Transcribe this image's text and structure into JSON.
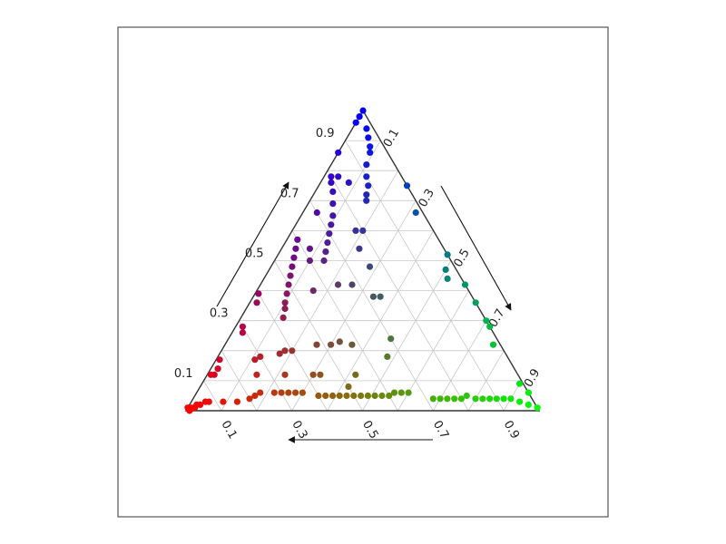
{
  "chart_data": {
    "type": "scatter",
    "subtype": "ternary",
    "title": "",
    "axes": {
      "a": {
        "label": "",
        "ticks": [
          "0.1",
          "0.3",
          "0.5",
          "0.7",
          "0.9"
        ],
        "range": [
          0,
          1
        ]
      },
      "b": {
        "label": "",
        "ticks": [
          "0.1",
          "0.3",
          "0.5",
          "0.7",
          "0.9"
        ],
        "range": [
          0,
          1
        ]
      },
      "c": {
        "label": "",
        "ticks": [
          "0.9",
          "0.7",
          "0.5",
          "0.3",
          "0.1"
        ],
        "range": [
          0,
          1
        ]
      }
    },
    "grid": true,
    "color_mapping": "rgb = (a, b, c)",
    "points": [
      [
        0.0,
        0.0,
        1.0
      ],
      [
        0.02,
        0.0,
        0.98
      ],
      [
        0.04,
        0.0,
        0.96
      ],
      [
        0.02,
        0.04,
        0.94
      ],
      [
        0.03,
        0.06,
        0.91
      ],
      [
        0.04,
        0.08,
        0.88
      ],
      [
        0.05,
        0.09,
        0.86
      ],
      [
        0.08,
        0.1,
        0.82
      ],
      [
        0.1,
        0.12,
        0.78
      ],
      [
        0.11,
        0.14,
        0.75
      ],
      [
        0.13,
        0.15,
        0.72
      ],
      [
        0.14,
        0.16,
        0.7
      ],
      [
        0.2,
        0.02,
        0.78
      ],
      [
        0.21,
        0.03,
        0.76
      ],
      [
        0.22,
        0.05,
        0.73
      ],
      [
        0.24,
        0.07,
        0.69
      ],
      [
        0.26,
        0.09,
        0.65
      ],
      [
        0.28,
        0.1,
        0.62
      ],
      [
        0.3,
        0.11,
        0.59
      ],
      [
        0.32,
        0.12,
        0.56
      ],
      [
        0.34,
        0.13,
        0.53
      ],
      [
        0.36,
        0.14,
        0.5
      ],
      [
        0.4,
        0.03,
        0.57
      ],
      [
        0.42,
        0.04,
        0.54
      ],
      [
        0.44,
        0.05,
        0.51
      ],
      [
        0.46,
        0.06,
        0.48
      ],
      [
        0.48,
        0.07,
        0.45
      ],
      [
        0.5,
        0.08,
        0.42
      ],
      [
        0.52,
        0.09,
        0.39
      ],
      [
        0.54,
        0.1,
        0.36
      ],
      [
        0.55,
        0.11,
        0.34
      ],
      [
        0.57,
        0.12,
        0.31
      ],
      [
        0.6,
        0.01,
        0.39
      ],
      [
        0.62,
        0.02,
        0.36
      ],
      [
        0.7,
        0.02,
        0.28
      ],
      [
        0.71,
        0.03,
        0.26
      ],
      [
        0.86,
        0.02,
        0.12
      ],
      [
        0.87,
        0.01,
        0.12
      ],
      [
        0.98,
        0.01,
        0.01
      ],
      [
        0.99,
        0.0,
        0.01
      ],
      [
        0.97,
        0.02,
        0.01
      ],
      [
        0.95,
        0.03,
        0.02
      ],
      [
        0.93,
        0.04,
        0.03
      ],
      [
        0.0,
        0.25,
        0.75
      ],
      [
        0.02,
        0.32,
        0.66
      ],
      [
        0.0,
        0.48,
        0.52
      ],
      [
        0.03,
        0.5,
        0.47
      ],
      [
        0.04,
        0.52,
        0.44
      ],
      [
        0.0,
        0.58,
        0.42
      ],
      [
        0.0,
        0.64,
        0.36
      ],
      [
        0.0,
        0.7,
        0.3
      ],
      [
        0.0,
        0.72,
        0.28
      ],
      [
        0.02,
        0.76,
        0.22
      ],
      [
        0.01,
        0.9,
        0.09
      ],
      [
        0.0,
        0.94,
        0.06
      ],
      [
        0.02,
        0.96,
        0.02
      ],
      [
        0.0,
        0.99,
        0.01
      ],
      [
        0.12,
        0.84,
        0.04
      ],
      [
        0.14,
        0.82,
        0.04
      ],
      [
        0.16,
        0.8,
        0.04
      ],
      [
        0.18,
        0.77,
        0.05
      ],
      [
        0.2,
        0.76,
        0.04
      ],
      [
        0.22,
        0.74,
        0.04
      ],
      [
        0.24,
        0.72,
        0.04
      ],
      [
        0.26,
        0.7,
        0.04
      ],
      [
        0.28,
        0.68,
        0.04
      ],
      [
        0.34,
        0.6,
        0.06
      ],
      [
        0.36,
        0.58,
        0.06
      ],
      [
        0.38,
        0.56,
        0.06
      ],
      [
        0.4,
        0.55,
        0.05
      ],
      [
        0.42,
        0.53,
        0.05
      ],
      [
        0.44,
        0.51,
        0.05
      ],
      [
        0.46,
        0.49,
        0.05
      ],
      [
        0.48,
        0.47,
        0.05
      ],
      [
        0.5,
        0.45,
        0.05
      ],
      [
        0.52,
        0.43,
        0.05
      ],
      [
        0.54,
        0.41,
        0.05
      ],
      [
        0.56,
        0.39,
        0.05
      ],
      [
        0.58,
        0.37,
        0.05
      ],
      [
        0.6,
        0.35,
        0.05
      ],
      [
        0.64,
        0.3,
        0.06
      ],
      [
        0.66,
        0.28,
        0.06
      ],
      [
        0.68,
        0.26,
        0.06
      ],
      [
        0.7,
        0.24,
        0.06
      ],
      [
        0.72,
        0.22,
        0.06
      ],
      [
        0.76,
        0.18,
        0.06
      ],
      [
        0.78,
        0.17,
        0.05
      ],
      [
        0.8,
        0.16,
        0.04
      ],
      [
        0.84,
        0.13,
        0.03
      ],
      [
        0.88,
        0.09,
        0.03
      ],
      [
        0.92,
        0.05,
        0.03
      ],
      [
        0.96,
        0.02,
        0.02
      ],
      [
        0.99,
        0.01,
        0.0
      ],
      [
        0.48,
        0.3,
        0.22
      ],
      [
        0.45,
        0.32,
        0.23
      ],
      [
        0.42,
        0.36,
        0.22
      ],
      [
        0.52,
        0.26,
        0.22
      ],
      [
        0.62,
        0.18,
        0.2
      ],
      [
        0.64,
        0.17,
        0.19
      ],
      [
        0.6,
        0.2,
        0.2
      ],
      [
        0.7,
        0.12,
        0.18
      ],
      [
        0.72,
        0.11,
        0.17
      ],
      [
        0.28,
        0.34,
        0.38
      ],
      [
        0.26,
        0.36,
        0.38
      ],
      [
        0.38,
        0.08,
        0.54
      ],
      [
        0.4,
        0.1,
        0.5
      ],
      [
        0.16,
        0.08,
        0.76
      ],
      [
        0.34,
        0.48,
        0.18
      ],
      [
        0.3,
        0.46,
        0.24
      ],
      [
        0.82,
        0.01,
        0.17
      ],
      [
        0.84,
        0.02,
        0.14
      ],
      [
        0.14,
        0.0,
        0.86
      ],
      [
        0.2,
        0.2,
        0.6
      ],
      [
        0.22,
        0.18,
        0.6
      ],
      [
        0.24,
        0.22,
        0.54
      ],
      [
        0.36,
        0.22,
        0.42
      ],
      [
        0.58,
        0.3,
        0.12
      ],
      [
        0.56,
        0.32,
        0.12
      ],
      [
        0.46,
        0.42,
        0.12
      ],
      [
        0.1,
        0.86,
        0.04
      ],
      [
        0.08,
        0.88,
        0.04
      ],
      [
        0.06,
        0.9,
        0.04
      ],
      [
        0.04,
        0.93,
        0.03
      ],
      [
        0.5,
        0.42,
        0.08
      ],
      [
        0.66,
        0.22,
        0.12
      ],
      [
        0.74,
        0.14,
        0.12
      ],
      [
        0.24,
        0.28,
        0.48
      ],
      [
        0.32,
        0.26,
        0.42
      ],
      [
        0.44,
        0.16,
        0.4
      ],
      [
        0.3,
        0.04,
        0.66
      ],
      [
        0.18,
        0.04,
        0.78
      ]
    ]
  }
}
